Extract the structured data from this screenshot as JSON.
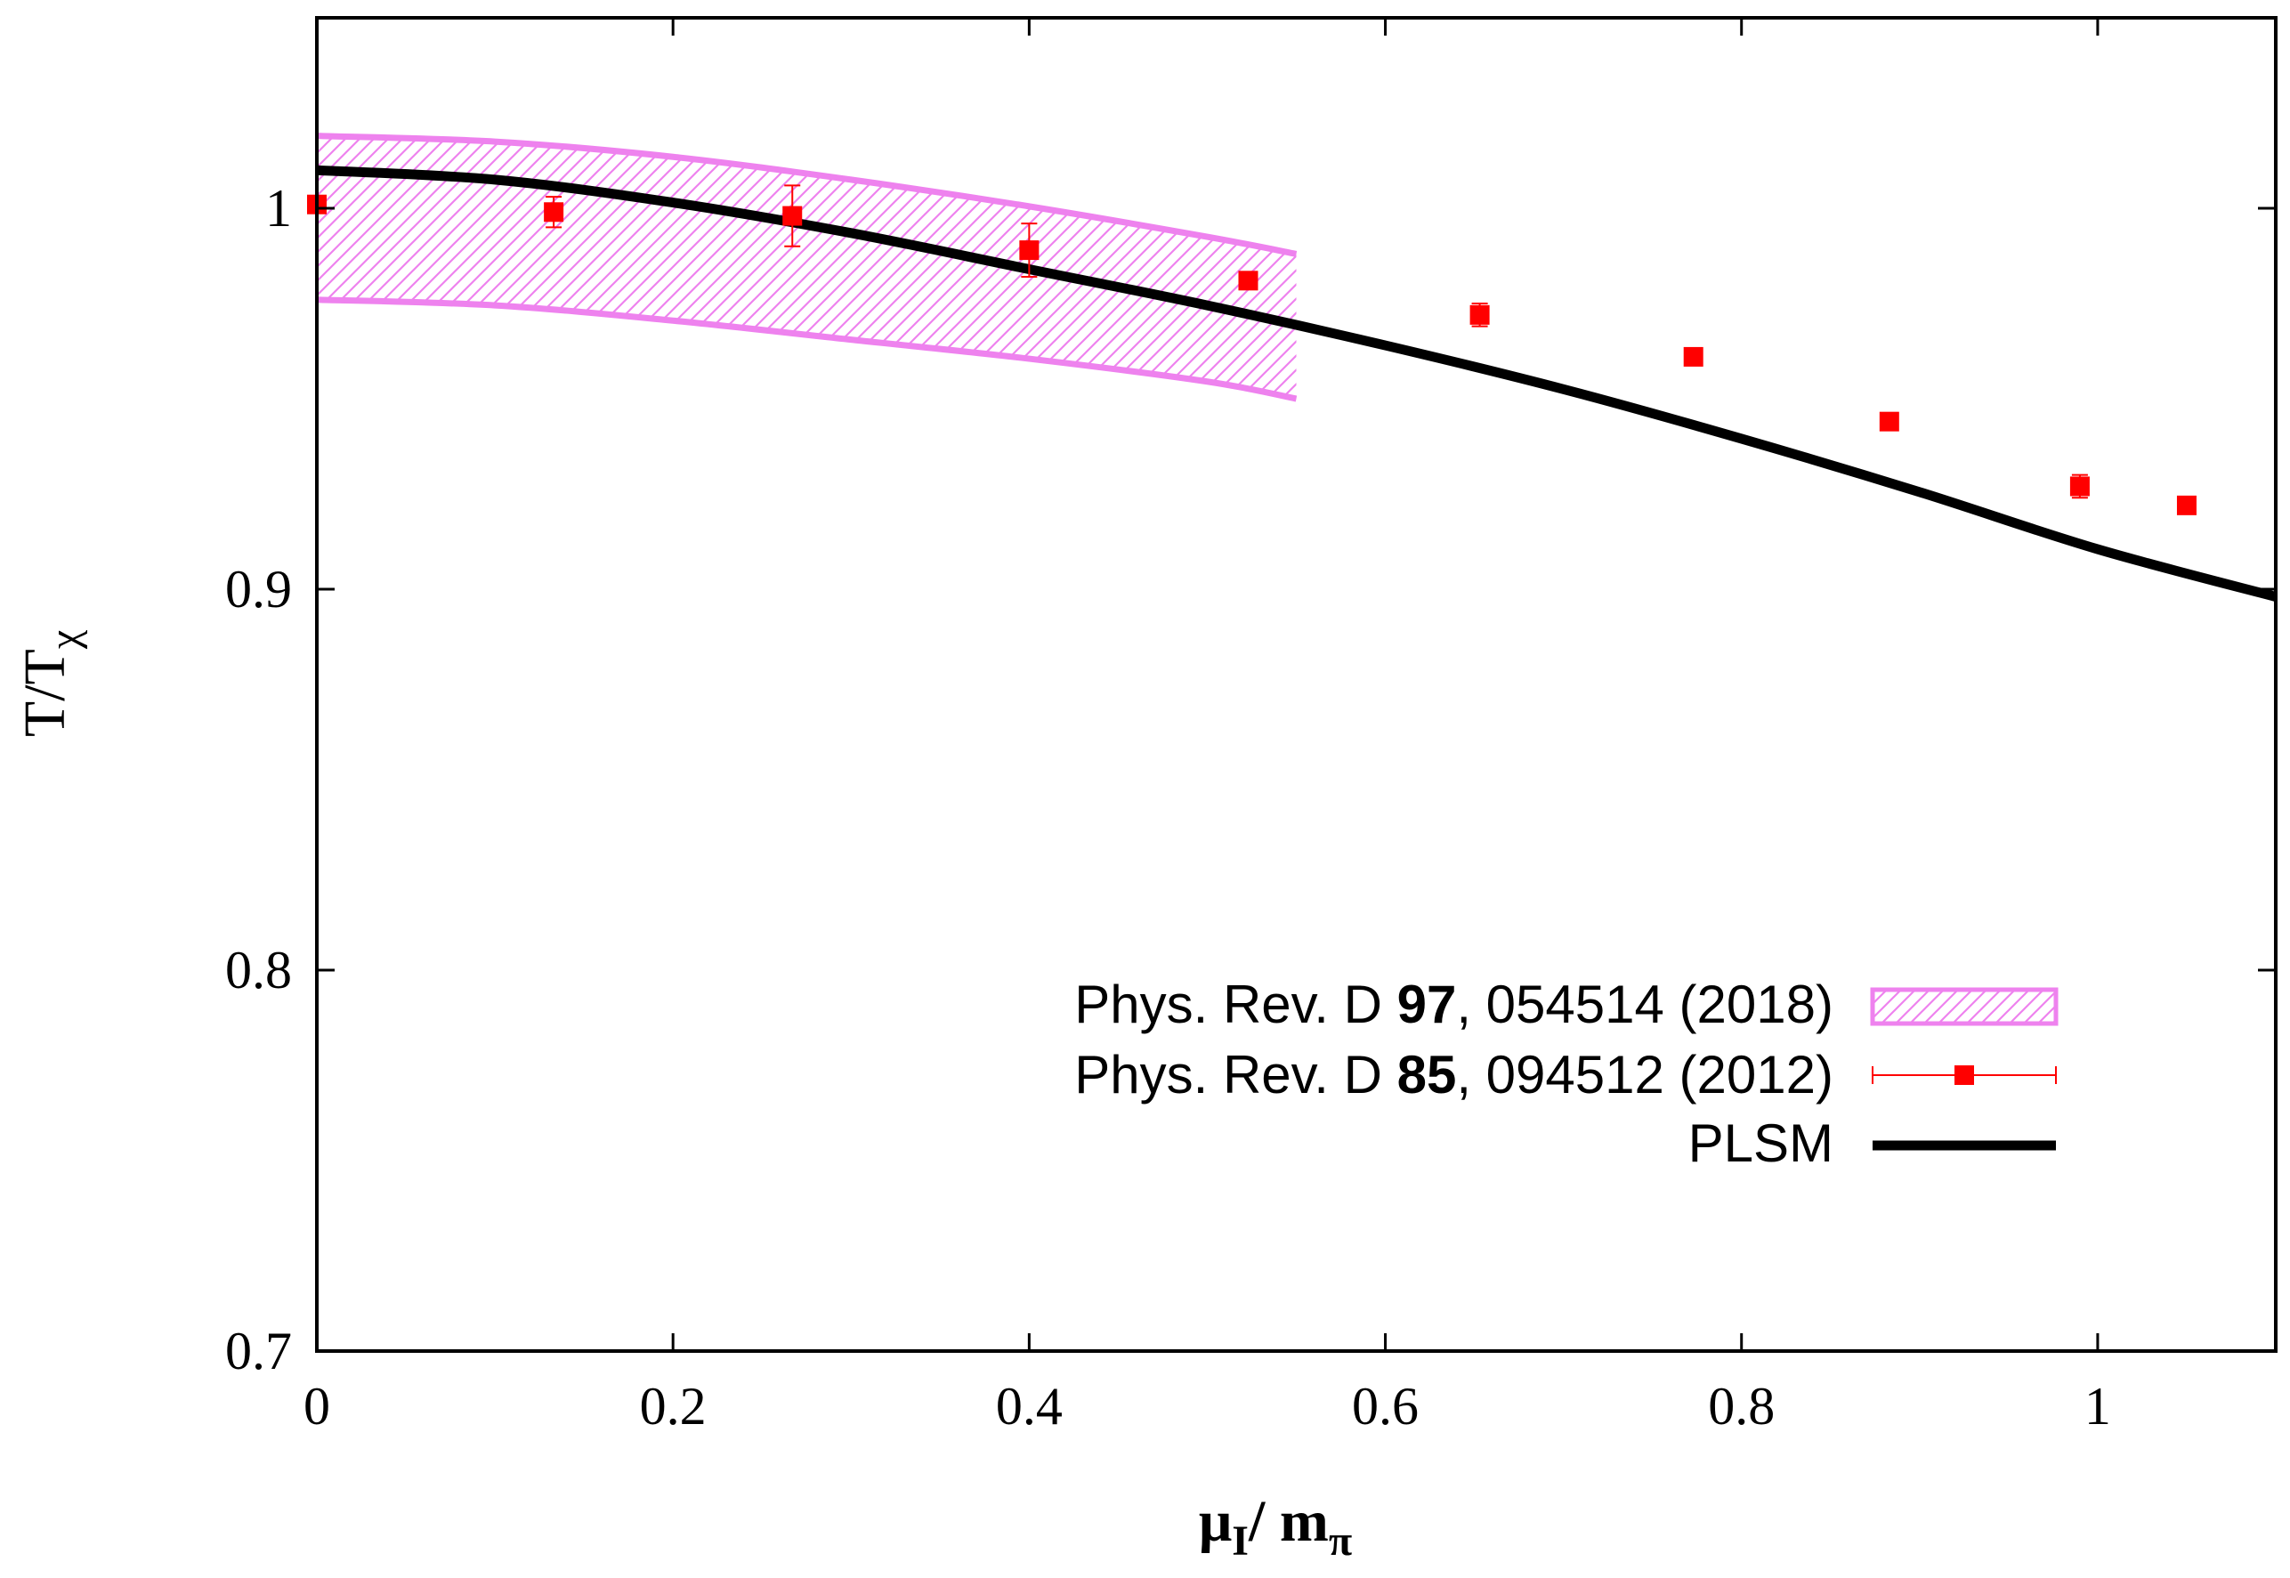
{
  "chart_data": {
    "type": "line",
    "title": "",
    "xlabel": {
      "base": "μ",
      "sub": "I",
      "mid": "/ m",
      "sub2": "π"
    },
    "ylabel": {
      "base": "T/T",
      "sub": "χ"
    },
    "xlim": [
      0,
      1.1
    ],
    "ylim": [
      0.7,
      1.05
    ],
    "xticks": [
      0,
      0.2,
      0.4,
      0.6,
      0.8,
      1
    ],
    "xtick_labels": [
      "0",
      "0.2",
      "0.4",
      "0.6",
      "0.8",
      "1"
    ],
    "yticks": [
      0.7,
      0.8,
      0.9,
      1.0
    ],
    "ytick_labels": [
      "0.7",
      "0.8",
      "0.9",
      "1"
    ],
    "legend_position": "bottom-right",
    "series": [
      {
        "name": "Phys. Rev. D 97, 054514 (2018)",
        "legend_parts": [
          "Phys. Rev. D  ",
          "97",
          ", 054514 (2018)"
        ],
        "kind": "band",
        "color": "#ee82ee",
        "x": [
          0,
          0.1,
          0.2,
          0.3,
          0.4,
          0.5,
          0.55
        ],
        "upper": [
          1.019,
          1.0175,
          1.0135,
          1.0075,
          1.0005,
          0.9925,
          0.988
        ],
        "lower": [
          0.976,
          0.9745,
          0.9705,
          0.9655,
          0.9605,
          0.9545,
          0.95
        ]
      },
      {
        "name": "Phys. Rev. D 85, 094512 (2012)",
        "legend_parts": [
          "Phys. Rev. D ",
          "85",
          ", 094512 (2012)"
        ],
        "kind": "scatter",
        "color": "#ff0000",
        "x": [
          0,
          0.133,
          0.267,
          0.4,
          0.523,
          0.653,
          0.773,
          0.883,
          0.99,
          1.05
        ],
        "y": [
          1.001,
          0.999,
          0.998,
          0.989,
          0.981,
          0.972,
          0.961,
          0.944,
          0.927,
          0.922
        ],
        "yerr": [
          0.002,
          0.004,
          0.008,
          0.007,
          0.002,
          0.003,
          0.002,
          0.002,
          0.003,
          0.002
        ]
      },
      {
        "name": "PLSM",
        "legend_parts": [
          "PLSM"
        ],
        "kind": "line",
        "color": "#000000",
        "x": [
          0,
          0.1,
          0.2,
          0.3,
          0.4,
          0.5,
          0.6,
          0.7,
          0.8,
          0.9,
          1.0,
          1.1
        ],
        "y": [
          1.01,
          1.0075,
          1.0015,
          0.9935,
          0.984,
          0.9745,
          0.964,
          0.9525,
          0.9395,
          0.9255,
          0.9105,
          0.898
        ]
      }
    ]
  }
}
